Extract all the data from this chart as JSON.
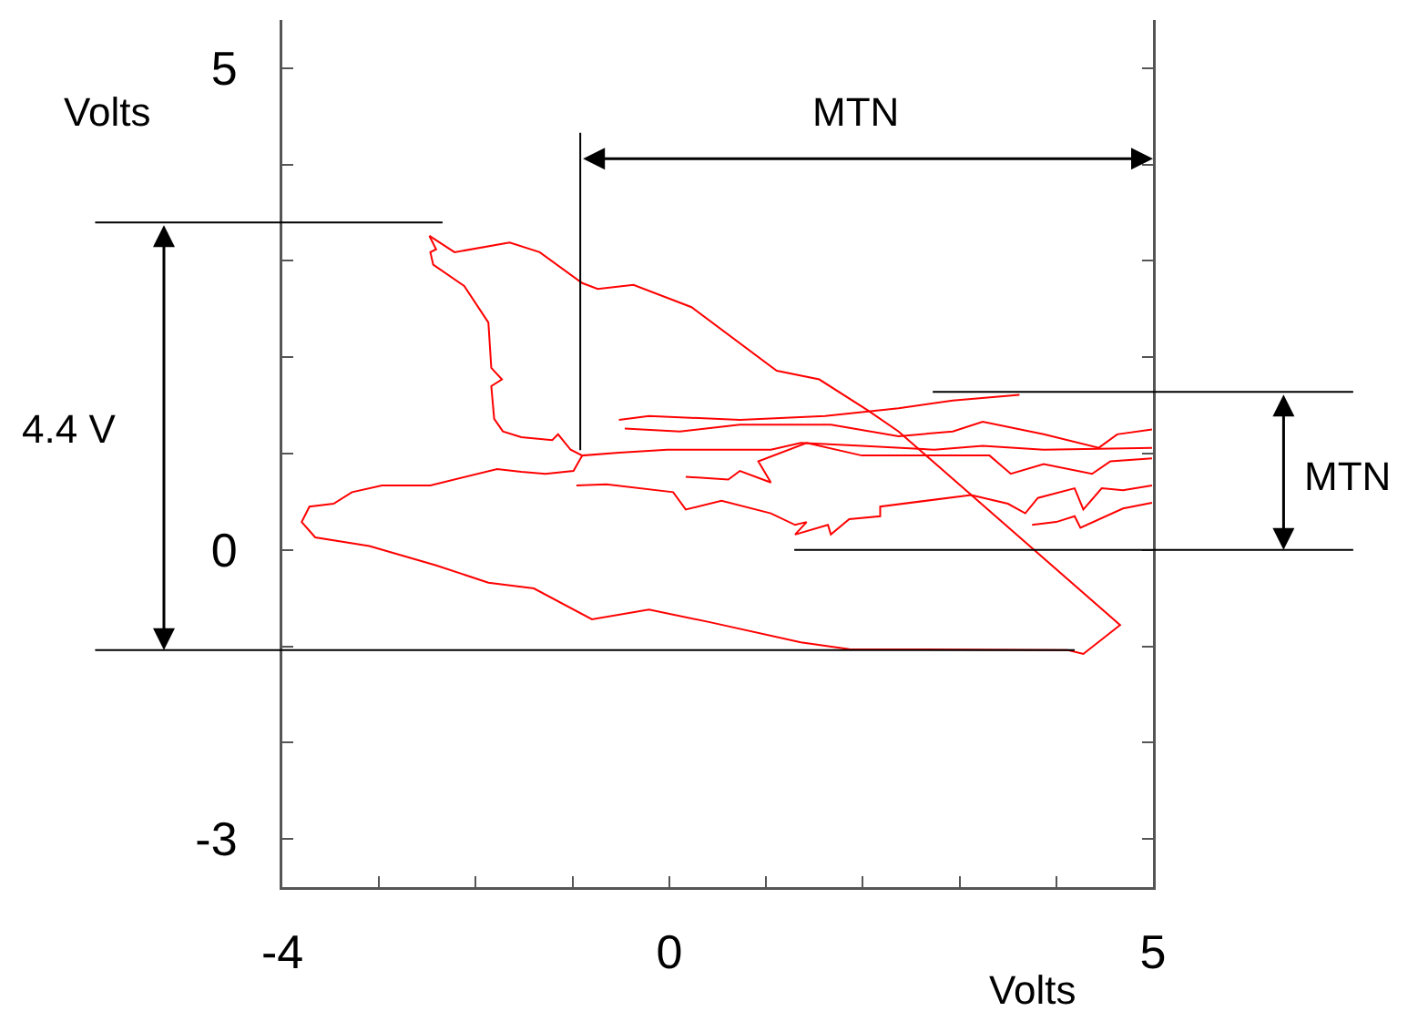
{
  "chart_data": {
    "type": "line",
    "xlabel": "Volts",
    "ylabel": "Volts",
    "xlim": [
      -4,
      5
    ],
    "ylim": [
      -3.5,
      5.5
    ],
    "xticks": [
      -4,
      {
        "value": -3,
        "label": null
      },
      {
        "value": -2,
        "label": null
      },
      {
        "value": -1,
        "label": null
      },
      0,
      {
        "value": 1,
        "label": null
      },
      {
        "value": 2,
        "label": null
      },
      {
        "value": 3,
        "label": null
      },
      {
        "value": 4,
        "label": null
      },
      5
    ],
    "yticks": [
      -3,
      {
        "value": -2,
        "label": null
      },
      {
        "value": -1,
        "label": null
      },
      0,
      {
        "value": 1,
        "label": null
      },
      {
        "value": 2,
        "label": null
      },
      {
        "value": 3,
        "label": null
      },
      {
        "value": 4,
        "label": null
      },
      5
    ],
    "annotations": [
      "4.4 V",
      "MTN",
      "MTN"
    ],
    "ref_lines": [
      {
        "axis": "y",
        "value": 3.4
      },
      {
        "axis": "y",
        "value": -1.04
      },
      {
        "axis": "x",
        "value": -0.92
      },
      {
        "axis": "y",
        "value": 1.64
      },
      {
        "axis": "y",
        "value": 0
      }
    ],
    "series": [
      {
        "color": "#ff0000",
        "x": [
          -2.48,
          -2.41,
          -2.47,
          -2.44,
          -2.12,
          -1.87,
          -1.84,
          -1.73,
          -1.84,
          -1.81,
          -1.72,
          -1.53,
          -1.21,
          -1.15,
          -1.02,
          -0.9,
          -0.52,
          -0.02,
          0.67,
          1.05,
          1.36,
          1.99,
          2.74,
          3.24,
          3.87,
          4.99,
          null,
          -2.48,
          -2.22,
          -1.65,
          -1.34,
          -0.9,
          -0.74,
          -0.37,
          0.23,
          1.11,
          1.55,
          2.05,
          2.37,
          4.66,
          4.28,
          4.12,
          1.86,
          1.36,
          0.42,
          -0.21,
          -0.8,
          -1.4,
          -1.87,
          -2.41,
          -3.1,
          -3.66,
          -3.8,
          -3.72,
          -3.47,
          -3.28,
          -2.97,
          -2.47,
          -1.78,
          -1.53,
          -1.28,
          -0.99,
          -0.9,
          null,
          -0.52,
          -0.21,
          0.73,
          1.61,
          2.37,
          2.93,
          3.62,
          null,
          -0.46,
          0.11,
          0.73,
          1.67,
          2.37,
          2.93,
          3.24,
          3.87,
          4.44,
          4.63,
          4.99,
          null,
          -0.96,
          -0.65,
          0.04,
          0.17,
          0.54,
          1.05,
          1.3,
          1.42,
          1.3,
          1.64,
          1.67,
          1.86,
          2.18,
          2.18,
          3.12,
          3.5,
          3.68,
          3.81,
          4.19,
          4.28,
          4.47,
          4.69,
          4.99,
          null,
          3.75,
          4.0,
          4.19,
          4.25,
          4.69,
          4.99,
          null,
          0.17,
          0.61,
          0.73,
          1.05,
          0.92,
          1.42,
          1.99,
          2.74,
          3.31,
          3.53,
          3.87,
          4.37,
          4.56,
          4.99
        ],
        "values": [
          3.26,
          3.12,
          3.09,
          2.96,
          2.74,
          2.36,
          1.89,
          1.77,
          1.7,
          1.36,
          1.23,
          1.17,
          1.14,
          1.2,
          1.04,
          0.98,
          1.01,
          1.04,
          1.04,
          1.04,
          1.11,
          1.08,
          1.04,
          1.08,
          1.04,
          1.06,
          null,
          3.26,
          3.09,
          3.19,
          3.09,
          2.77,
          2.71,
          2.75,
          2.52,
          1.86,
          1.77,
          1.45,
          1.23,
          -0.78,
          -1.08,
          -1.04,
          -1.03,
          -0.96,
          -0.75,
          -0.62,
          -0.72,
          -0.4,
          -0.34,
          -0.16,
          0.04,
          0.13,
          0.29,
          0.45,
          0.48,
          0.6,
          0.67,
          0.67,
          0.84,
          0.81,
          0.79,
          0.82,
          0.98,
          null,
          1.35,
          1.39,
          1.35,
          1.39,
          1.47,
          1.55,
          1.61,
          null,
          1.26,
          1.23,
          1.3,
          1.3,
          1.18,
          1.23,
          1.33,
          1.2,
          1.06,
          1.2,
          1.25,
          null,
          0.67,
          0.68,
          0.6,
          0.42,
          0.51,
          0.38,
          0.26,
          0.29,
          0.16,
          0.26,
          0.16,
          0.32,
          0.35,
          0.45,
          0.57,
          0.48,
          0.38,
          0.54,
          0.64,
          0.42,
          0.64,
          0.62,
          0.67,
          null,
          0.26,
          0.29,
          0.35,
          0.23,
          0.43,
          0.49,
          null,
          0.76,
          0.73,
          0.82,
          0.7,
          0.92,
          1.11,
          0.98,
          0.98,
          0.98,
          0.79,
          0.89,
          0.79,
          0.92,
          0.95
        ]
      }
    ]
  }
}
